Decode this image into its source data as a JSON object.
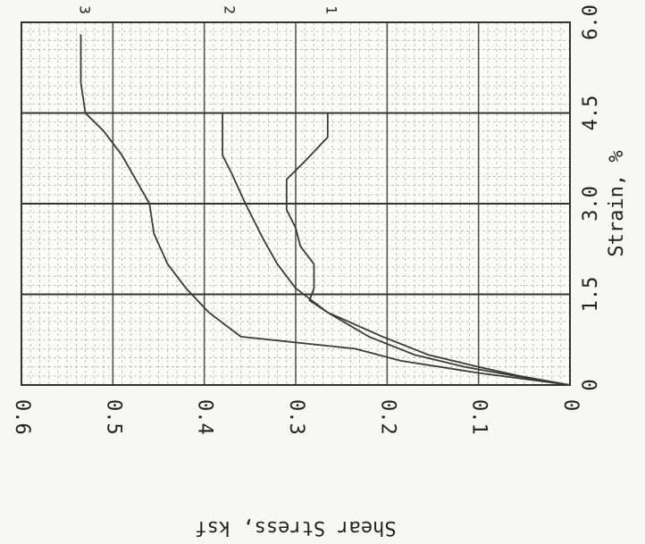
{
  "chart_data": {
    "type": "line",
    "title": "",
    "xlabel": "Strain, %",
    "ylabel": "Shear Stress, ksf",
    "xlim": [
      0,
      6.0
    ],
    "ylim": [
      0,
      0.6
    ],
    "x_ticks": [
      "0",
      "1.5",
      "3.0",
      "4.5",
      "6.0"
    ],
    "y_ticks": [
      "0",
      "0.1",
      "0.2",
      "0.3",
      "0.4",
      "0.5",
      "0.6"
    ],
    "grid": true,
    "orientation": "rotated 90° clockwise (strain axis vertical)",
    "series": [
      {
        "name": "1",
        "x": [
          0,
          0.15,
          0.3,
          0.5,
          0.8,
          1.0,
          1.2,
          1.4,
          1.6,
          2.0,
          2.3,
          2.6,
          2.9,
          3.1,
          3.4,
          3.7,
          4.1,
          4.5
        ],
        "y": [
          0,
          0.055,
          0.1,
          0.155,
          0.205,
          0.235,
          0.265,
          0.285,
          0.28,
          0.28,
          0.295,
          0.3,
          0.31,
          0.31,
          0.31,
          0.29,
          0.265,
          0.265
        ]
      },
      {
        "name": "2",
        "x": [
          0,
          0.15,
          0.3,
          0.5,
          0.8,
          1.2,
          1.6,
          2.0,
          2.4,
          3.0,
          3.5,
          3.8,
          4.1,
          4.5
        ],
        "y": [
          0,
          0.06,
          0.115,
          0.17,
          0.22,
          0.265,
          0.3,
          0.32,
          0.335,
          0.355,
          0.37,
          0.38,
          0.38,
          0.38
        ]
      },
      {
        "name": "3",
        "x": [
          0,
          0.2,
          0.4,
          0.6,
          0.8,
          1.2,
          1.6,
          2.0,
          2.5,
          3.0,
          3.4,
          3.8,
          4.2,
          4.5,
          5.0,
          5.5,
          5.8
        ],
        "y": [
          0,
          0.1,
          0.185,
          0.235,
          0.36,
          0.395,
          0.42,
          0.44,
          0.455,
          0.46,
          0.475,
          0.49,
          0.51,
          0.53,
          0.535,
          0.535,
          0.535
        ]
      }
    ]
  }
}
